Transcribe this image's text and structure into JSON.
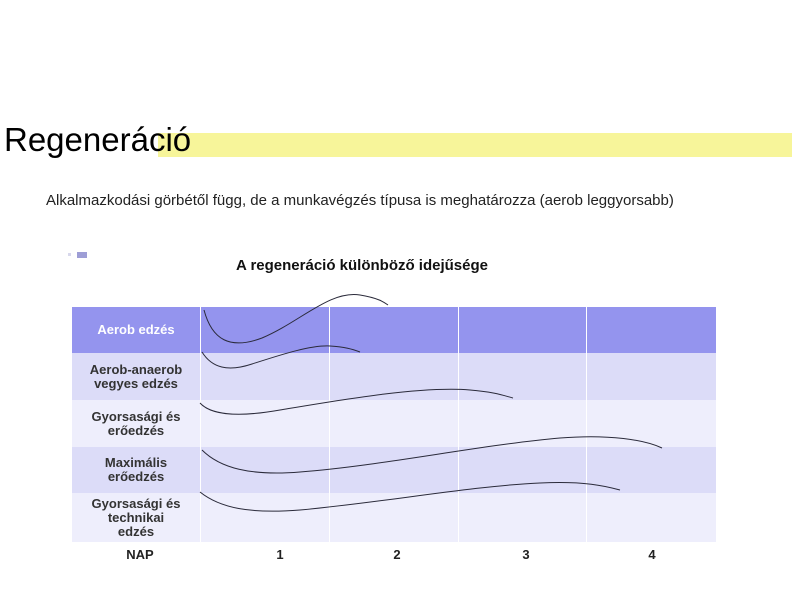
{
  "slide": {
    "title": "Regeneráció",
    "body": "Alkalmazkodási görbétől függ, de a munkavégzés típusa is meghatározza (aerob leggyorsabb)"
  },
  "figure": {
    "title": "A regeneráció különböző idejűsége",
    "colors": {
      "header_row": "#9494ee",
      "row_a": "#dcdcf8",
      "row_b": "#eeeefc",
      "title_highlight": "#f7f59a"
    },
    "rows": [
      {
        "label": "Aerob edzés",
        "label_color": "#ffffff",
        "bg": "#9494ee"
      },
      {
        "label": "Aerob-anaerob\nvegyes edzés",
        "label_color": "#333333",
        "bg": "#dcdcf8"
      },
      {
        "label": "Gyorsasági és\nerőedzés",
        "label_color": "#333333",
        "bg": "#eeeefc"
      },
      {
        "label": "Maximális\nerőedzés",
        "label_color": "#333333",
        "bg": "#dcdcf8"
      },
      {
        "label": "Gyorsasági és\ntechnikai\nedzés",
        "label_color": "#333333",
        "bg": "#eeeefc"
      }
    ],
    "x_axis": {
      "label": "NAP",
      "ticks": [
        "1",
        "2",
        "3",
        "4"
      ]
    }
  }
}
